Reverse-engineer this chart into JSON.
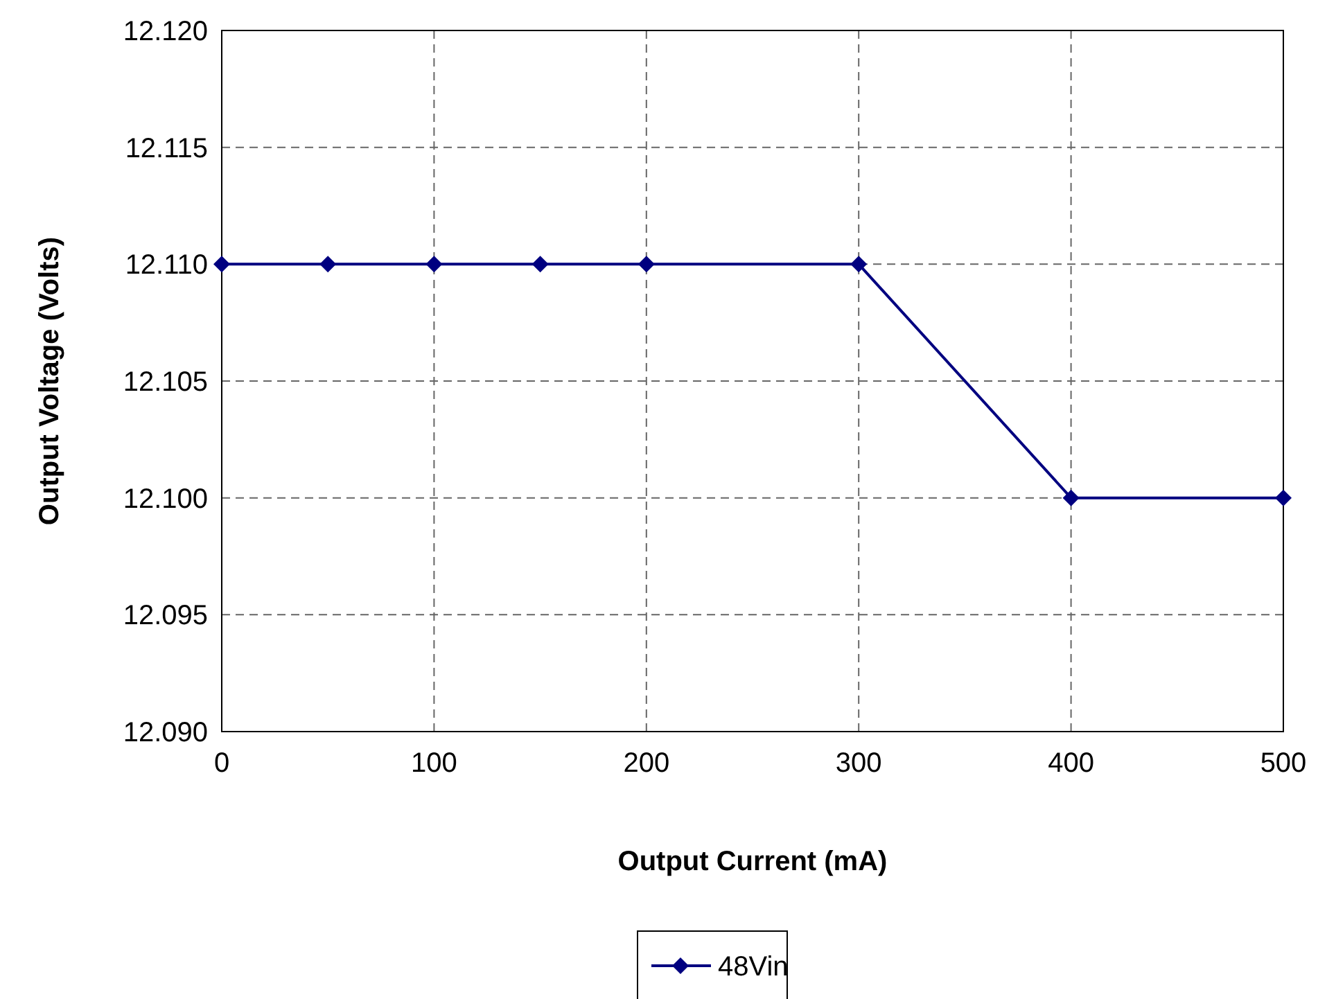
{
  "chart_data": {
    "type": "line",
    "xlabel": "Output Current (mA)",
    "ylabel": "Output Voltage (Volts)",
    "x": [
      0,
      50,
      100,
      150,
      200,
      300,
      400,
      500
    ],
    "series": [
      {
        "name": "48Vin",
        "color": "#000080",
        "values": [
          12.11,
          12.11,
          12.11,
          12.11,
          12.11,
          12.11,
          12.1,
          12.1
        ]
      }
    ],
    "xlim": [
      0,
      500
    ],
    "xticks": [
      0,
      100,
      200,
      300,
      400,
      500
    ],
    "ylim": [
      12.09,
      12.12
    ],
    "yticks": [
      {
        "value": 12.09,
        "label": "12.090"
      },
      {
        "value": 12.095,
        "label": "12.095"
      },
      {
        "value": 12.1,
        "label": "12.100"
      },
      {
        "value": 12.105,
        "label": "12.105"
      },
      {
        "value": 12.11,
        "label": "12.110"
      },
      {
        "value": 12.115,
        "label": "12.115"
      },
      {
        "value": 12.12,
        "label": "12.120"
      }
    ],
    "grid": true,
    "legend": "bottom",
    "marker": "diamond",
    "line_style": "solid"
  }
}
